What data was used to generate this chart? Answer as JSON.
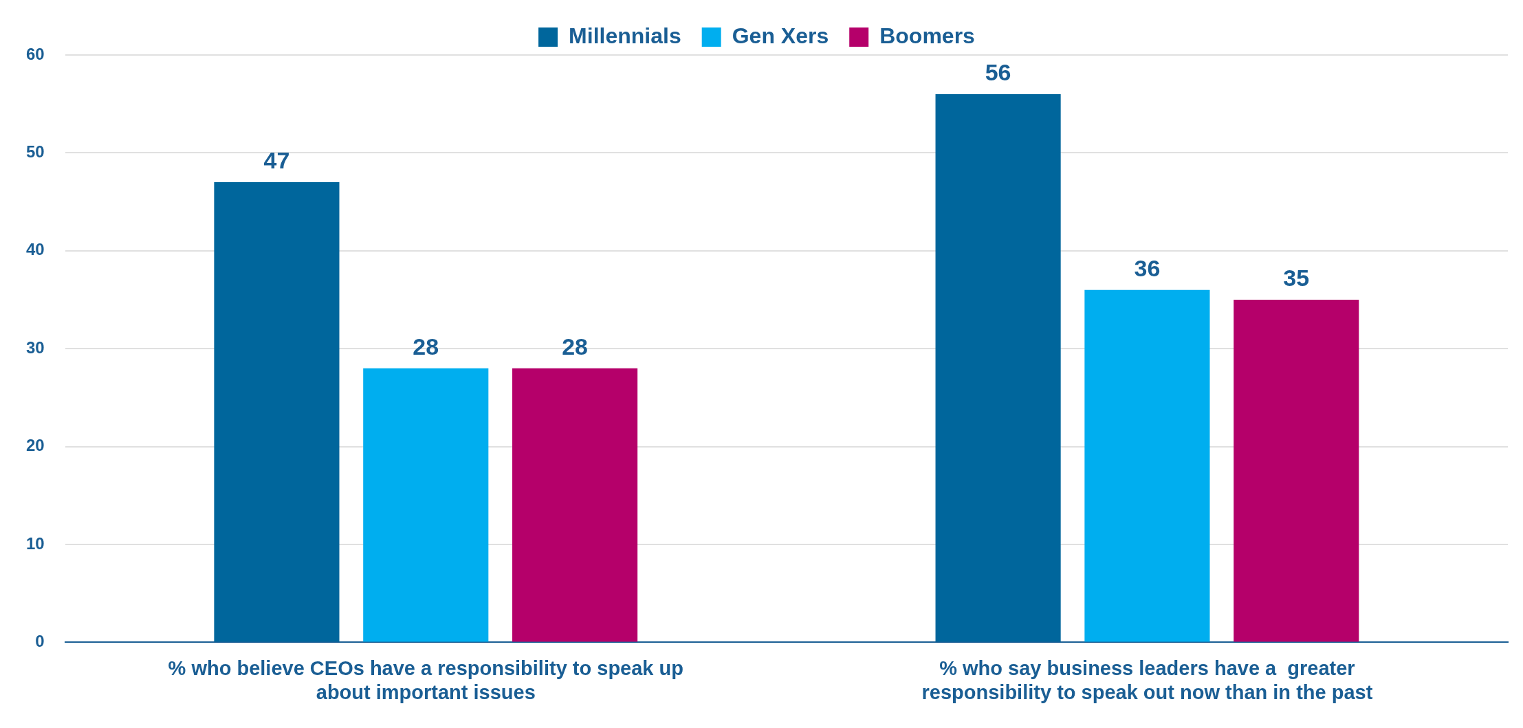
{
  "chart_data": {
    "type": "bar",
    "categories": [
      "% who believe CEOs have a responsibility to speak up about important issues",
      "% who say business leaders have a  greater responsibility to speak out now than in the past"
    ],
    "series": [
      {
        "name": "Millennials",
        "color": "#00669c",
        "values": [
          47,
          56
        ]
      },
      {
        "name": "Gen Xers",
        "color": "#00aeef",
        "values": [
          28,
          36
        ]
      },
      {
        "name": "Boomers",
        "color": "#b5006a",
        "values": [
          28,
          35
        ]
      }
    ],
    "ylim": [
      0,
      60
    ],
    "yticks": [
      0,
      10,
      20,
      30,
      40,
      50,
      60
    ],
    "grid": "y",
    "legend": "top",
    "data_labels": true
  }
}
